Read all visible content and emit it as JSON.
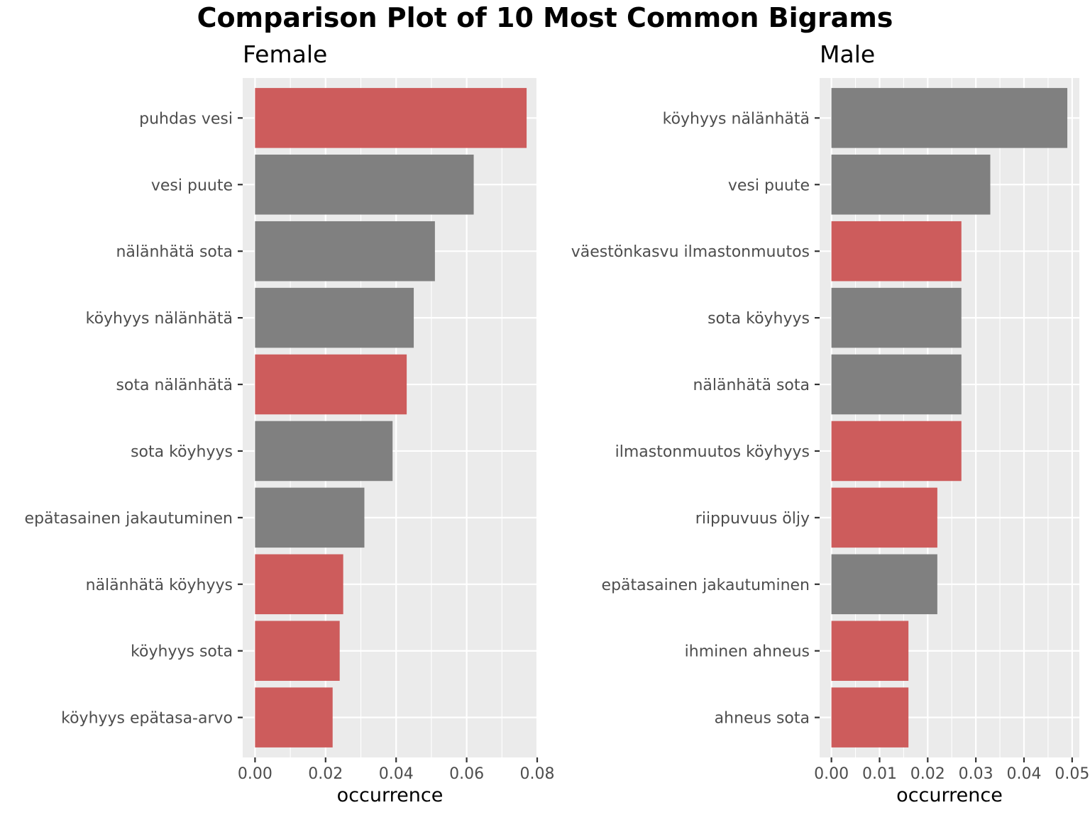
{
  "chart_data": {
    "title": "Comparison Plot of 10 Most Common Bigrams",
    "colors": {
      "highlight": "#cd5c5c",
      "default": "#808080",
      "panel_bg": "#ebebeb",
      "grid": "#ffffff"
    },
    "panels": [
      {
        "type": "bar",
        "orientation": "horizontal",
        "subtitle": "Female",
        "xlabel": "occurrence",
        "xlim": [
          -0.0035,
          0.08
        ],
        "x_ticks": [
          0.0,
          0.02,
          0.04,
          0.06,
          0.08
        ],
        "x_tick_labels": [
          "0.00",
          "0.02",
          "0.04",
          "0.06",
          "0.08"
        ],
        "grid": true,
        "categories": [
          "puhdas vesi",
          "vesi puute",
          "nälänhätä sota",
          "köyhyys nälänhätä",
          "sota nälänhätä",
          "sota köyhyys",
          "epätasainen jakautuminen",
          "nälänhätä köyhyys",
          "köyhyys sota",
          "köyhyys epätasa-arvo"
        ],
        "values": [
          0.077,
          0.062,
          0.051,
          0.045,
          0.043,
          0.039,
          0.031,
          0.025,
          0.024,
          0.022
        ],
        "colors": [
          "#cd5c5c",
          "#808080",
          "#808080",
          "#808080",
          "#cd5c5c",
          "#808080",
          "#808080",
          "#cd5c5c",
          "#cd5c5c",
          "#cd5c5c"
        ]
      },
      {
        "type": "bar",
        "orientation": "horizontal",
        "subtitle": "Male",
        "xlabel": "occurrence",
        "xlim": [
          -0.00245,
          0.0515
        ],
        "x_ticks": [
          0.0,
          0.01,
          0.02,
          0.03,
          0.04,
          0.05
        ],
        "x_tick_labels": [
          "0.00",
          "0.01",
          "0.02",
          "0.03",
          "0.04",
          "0.05"
        ],
        "grid": true,
        "categories": [
          "köyhyys nälänhätä",
          "vesi puute",
          "väestönkasvu ilmastonmuutos",
          "sota köyhyys",
          "nälänhätä sota",
          "ilmastonmuutos köyhyys",
          "riippuvuus öljy",
          "epätasainen jakautuminen",
          "ihminen ahneus",
          "ahneus sota"
        ],
        "values": [
          0.049,
          0.033,
          0.027,
          0.027,
          0.027,
          0.027,
          0.022,
          0.022,
          0.016,
          0.016
        ],
        "colors": [
          "#808080",
          "#808080",
          "#cd5c5c",
          "#808080",
          "#808080",
          "#cd5c5c",
          "#cd5c5c",
          "#808080",
          "#cd5c5c",
          "#cd5c5c"
        ]
      }
    ]
  }
}
